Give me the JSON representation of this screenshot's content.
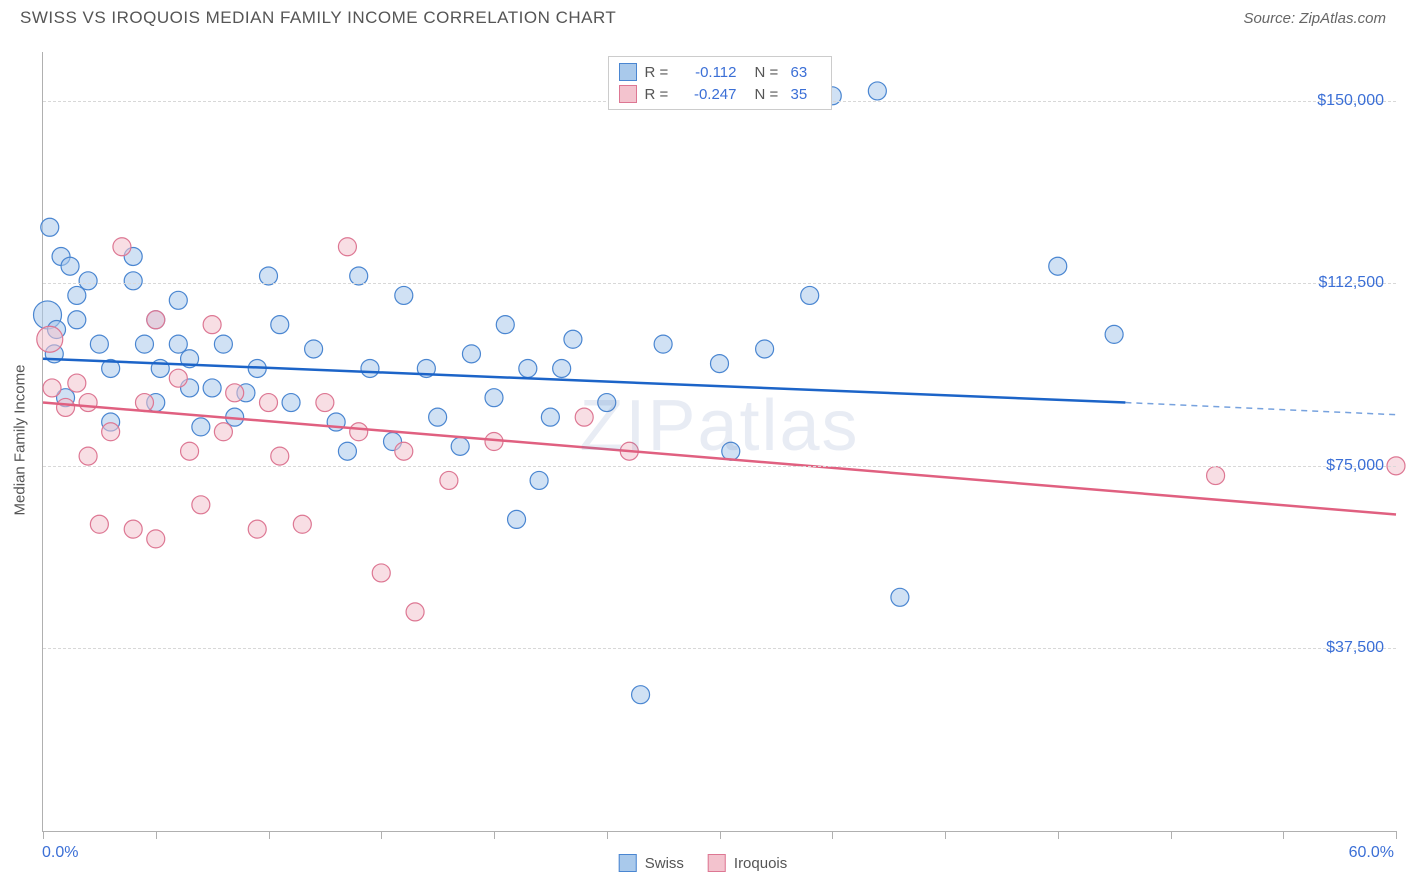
{
  "header": {
    "title": "SWISS VS IROQUOIS MEDIAN FAMILY INCOME CORRELATION CHART",
    "source": "Source: ZipAtlas.com"
  },
  "watermark": "ZIPatlas",
  "chart": {
    "type": "scatter",
    "background_color": "#ffffff",
    "grid_color": "#d8d8d8",
    "axis_color": "#b0b0b0",
    "y_axis_title": "Median Family Income",
    "xlim": [
      0,
      60
    ],
    "ylim": [
      0,
      160000
    ],
    "x_tick_positions": [
      0,
      5,
      10,
      15,
      20,
      25,
      30,
      35,
      40,
      45,
      50,
      55,
      60
    ],
    "x_labels": {
      "min": "0.0%",
      "max": "60.0%"
    },
    "y_grid": [
      {
        "value": 37500,
        "label": "$37,500"
      },
      {
        "value": 75000,
        "label": "$75,000"
      },
      {
        "value": 112500,
        "label": "$112,500"
      },
      {
        "value": 150000,
        "label": "$150,000"
      }
    ],
    "y_label_color": "#3b6fd6",
    "x_label_color": "#3b6fd6",
    "axis_title_color": "#555555",
    "series": [
      {
        "name": "Swiss",
        "fill": "#a9c9eb",
        "stroke": "#4a86d1",
        "fill_opacity": 0.55,
        "marker_r": 9,
        "trend": {
          "x1": 0,
          "y1": 97000,
          "x2": 48,
          "y2": 88000,
          "color": "#1c64c8",
          "width": 2.5
        },
        "trend_ext": {
          "x1": 48,
          "y1": 88000,
          "x2": 60,
          "y2": 85500,
          "dash": "6,5"
        },
        "points": [
          [
            0.3,
            124000
          ],
          [
            0.2,
            106000,
            14
          ],
          [
            0.8,
            118000
          ],
          [
            1.2,
            116000
          ],
          [
            1.5,
            110000
          ],
          [
            0.6,
            103000
          ],
          [
            0.5,
            98000
          ],
          [
            1.5,
            105000
          ],
          [
            1.0,
            89000
          ],
          [
            2.0,
            113000
          ],
          [
            2.5,
            100000
          ],
          [
            3.0,
            95000
          ],
          [
            3.0,
            84000
          ],
          [
            4.0,
            118000
          ],
          [
            4.0,
            113000
          ],
          [
            4.5,
            100000
          ],
          [
            5.0,
            105000
          ],
          [
            5.2,
            95000
          ],
          [
            5.0,
            88000
          ],
          [
            6.0,
            109000
          ],
          [
            6.0,
            100000
          ],
          [
            6.5,
            97000
          ],
          [
            6.5,
            91000
          ],
          [
            7.0,
            83000
          ],
          [
            7.5,
            91000
          ],
          [
            8.0,
            100000
          ],
          [
            8.5,
            85000
          ],
          [
            9.0,
            90000
          ],
          [
            9.5,
            95000
          ],
          [
            10.0,
            114000
          ],
          [
            10.5,
            104000
          ],
          [
            11.0,
            88000
          ],
          [
            12.0,
            99000
          ],
          [
            13.0,
            84000
          ],
          [
            13.5,
            78000
          ],
          [
            14.0,
            114000
          ],
          [
            14.5,
            95000
          ],
          [
            15.5,
            80000
          ],
          [
            16.0,
            110000
          ],
          [
            17.0,
            95000
          ],
          [
            17.5,
            85000
          ],
          [
            18.5,
            79000
          ],
          [
            19.0,
            98000
          ],
          [
            20.0,
            89000
          ],
          [
            20.5,
            104000
          ],
          [
            21.0,
            64000
          ],
          [
            21.5,
            95000
          ],
          [
            22.0,
            72000
          ],
          [
            22.5,
            85000
          ],
          [
            23.0,
            95000
          ],
          [
            23.5,
            101000
          ],
          [
            25.0,
            88000
          ],
          [
            26.5,
            28000
          ],
          [
            27.5,
            100000
          ],
          [
            30.0,
            96000
          ],
          [
            30.5,
            78000
          ],
          [
            32.0,
            99000
          ],
          [
            34.0,
            110000
          ],
          [
            35.0,
            151000
          ],
          [
            37.0,
            152000
          ],
          [
            38.0,
            48000
          ],
          [
            45.0,
            116000
          ],
          [
            47.5,
            102000
          ]
        ]
      },
      {
        "name": "Iroquois",
        "fill": "#f3c3ce",
        "stroke": "#dd7793",
        "fill_opacity": 0.55,
        "marker_r": 9,
        "trend": {
          "x1": 0,
          "y1": 88000,
          "x2": 60,
          "y2": 65000,
          "color": "#e06080",
          "width": 2.5
        },
        "points": [
          [
            0.3,
            101000,
            13
          ],
          [
            0.4,
            91000
          ],
          [
            1.0,
            87000
          ],
          [
            1.5,
            92000
          ],
          [
            2.0,
            88000
          ],
          [
            2.0,
            77000
          ],
          [
            2.5,
            63000
          ],
          [
            3.0,
            82000
          ],
          [
            3.5,
            120000
          ],
          [
            4.0,
            62000
          ],
          [
            4.5,
            88000
          ],
          [
            5.0,
            105000
          ],
          [
            5.0,
            60000
          ],
          [
            6.0,
            93000
          ],
          [
            6.5,
            78000
          ],
          [
            7.0,
            67000
          ],
          [
            7.5,
            104000
          ],
          [
            8.0,
            82000
          ],
          [
            8.5,
            90000
          ],
          [
            9.5,
            62000
          ],
          [
            10.0,
            88000
          ],
          [
            10.5,
            77000
          ],
          [
            11.5,
            63000
          ],
          [
            12.5,
            88000
          ],
          [
            13.5,
            120000
          ],
          [
            14.0,
            82000
          ],
          [
            15.0,
            53000
          ],
          [
            16.0,
            78000
          ],
          [
            16.5,
            45000
          ],
          [
            18.0,
            72000
          ],
          [
            20.0,
            80000
          ],
          [
            24.0,
            85000
          ],
          [
            26.0,
            78000
          ],
          [
            52.0,
            73000
          ],
          [
            60.0,
            75000
          ]
        ]
      }
    ]
  },
  "legend_top": {
    "rows": [
      {
        "swatch_fill": "#a9c9eb",
        "swatch_stroke": "#4a86d1",
        "r_label": "R =",
        "r": "-0.112",
        "n_label": "N =",
        "n": "63"
      },
      {
        "swatch_fill": "#f3c3ce",
        "swatch_stroke": "#dd7793",
        "r_label": "R =",
        "r": "-0.247",
        "n_label": "N =",
        "n": "35"
      }
    ]
  },
  "legend_bottom": {
    "items": [
      {
        "swatch_fill": "#a9c9eb",
        "swatch_stroke": "#4a86d1",
        "label": "Swiss"
      },
      {
        "swatch_fill": "#f3c3ce",
        "swatch_stroke": "#dd7793",
        "label": "Iroquois"
      }
    ]
  }
}
